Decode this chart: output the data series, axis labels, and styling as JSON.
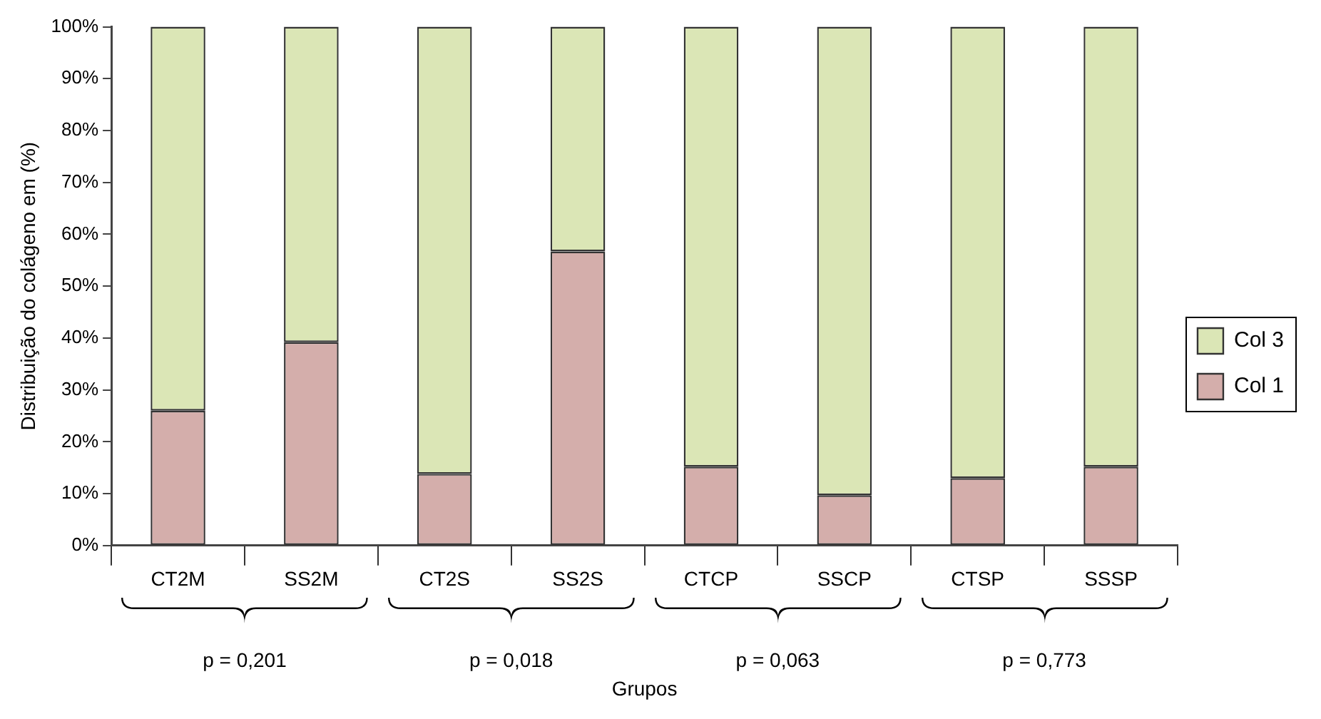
{
  "chart_data": {
    "type": "bar",
    "stacked": true,
    "xlabel": "Grupos",
    "ylabel": "Distribuição do colágeno em (%)",
    "categories": [
      "CT2M",
      "SS2M",
      "CT2S",
      "SS2S",
      "CTCP",
      "SSCP",
      "CTSP",
      "SSSP"
    ],
    "series": [
      {
        "name": "Col 1",
        "color": "#d4aeab",
        "values": [
          26.0,
          39.2,
          13.8,
          56.7,
          15.2,
          9.7,
          13.0,
          15.2
        ]
      },
      {
        "name": "Col 3",
        "color": "#dbe6b6",
        "values": [
          74.0,
          60.8,
          86.2,
          43.3,
          84.8,
          90.3,
          87.0,
          84.8
        ]
      }
    ],
    "ylim": [
      0,
      100
    ],
    "yticks": [
      {
        "value": 0,
        "label": "0%"
      },
      {
        "value": 10,
        "label": "10%"
      },
      {
        "value": 20,
        "label": "20%"
      },
      {
        "value": 30,
        "label": "30%"
      },
      {
        "value": 40,
        "label": "40%"
      },
      {
        "value": 50,
        "label": "50%"
      },
      {
        "value": 60,
        "label": "60%"
      },
      {
        "value": 70,
        "label": "70%"
      },
      {
        "value": 80,
        "label": "80%"
      },
      {
        "value": 90,
        "label": "90%"
      },
      {
        "value": 100,
        "label": "100%"
      }
    ],
    "legend": "right",
    "annotations": [
      "p = 0,201",
      "p = 0,018",
      "p = 0,063",
      "p = 0,773"
    ]
  }
}
